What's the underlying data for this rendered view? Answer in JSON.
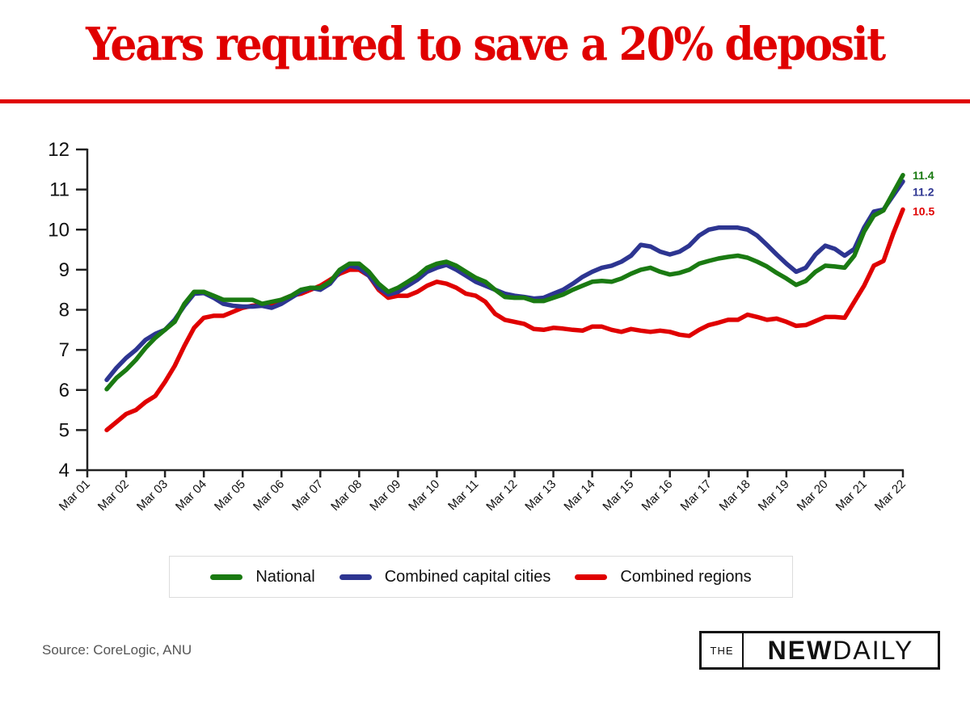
{
  "header": {
    "title": "Years required to save a 20% deposit"
  },
  "colors": {
    "title": "#e00000",
    "national": "#1a7a12",
    "capitals": "#2d3591",
    "regions": "#e00000",
    "axis": "#222222"
  },
  "chart_data": {
    "type": "line",
    "title": "Years required to save a 20% deposit",
    "xlabel": "",
    "ylabel": "",
    "ylim": [
      4,
      12
    ],
    "yticks": [
      4,
      5,
      6,
      7,
      8,
      9,
      10,
      11,
      12
    ],
    "xticks": [
      "Mar 01",
      "Mar 02",
      "Mar 03",
      "Mar 04",
      "Mar 05",
      "Mar 06",
      "Mar 07",
      "Mar 08",
      "Mar 09",
      "Mar 10",
      "Mar 11",
      "Mar 12",
      "Mar 13",
      "Mar 14",
      "Mar 15",
      "Mar 16",
      "Mar 17",
      "Mar 18",
      "Mar 19",
      "Mar 20",
      "Mar 21",
      "Mar 22"
    ],
    "x_start": "Sep 01",
    "x_step": "quarterly",
    "grid": false,
    "legend_position": "bottom",
    "series": [
      {
        "name": "National",
        "color_key": "national",
        "end_label": "11.4",
        "values": [
          6.02,
          6.3,
          6.5,
          6.75,
          7.05,
          7.3,
          7.5,
          7.7,
          8.15,
          8.45,
          8.45,
          8.35,
          8.25,
          8.25,
          8.25,
          8.25,
          8.15,
          8.2,
          8.25,
          8.35,
          8.5,
          8.55,
          8.55,
          8.7,
          9.0,
          9.15,
          9.15,
          8.95,
          8.65,
          8.45,
          8.55,
          8.7,
          8.85,
          9.05,
          9.15,
          9.2,
          9.1,
          8.95,
          8.8,
          8.7,
          8.5,
          8.32,
          8.3,
          8.3,
          8.22,
          8.22,
          8.3,
          8.38,
          8.5,
          8.6,
          8.7,
          8.72,
          8.7,
          8.78,
          8.9,
          9.0,
          9.05,
          8.95,
          8.88,
          8.92,
          9.0,
          9.15,
          9.22,
          9.28,
          9.32,
          9.35,
          9.3,
          9.2,
          9.08,
          8.92,
          8.78,
          8.62,
          8.72,
          8.95,
          9.1,
          9.08,
          9.05,
          9.35,
          9.95,
          10.35,
          10.48,
          10.92,
          11.36
        ]
      },
      {
        "name": "Combined capital cities",
        "color_key": "capitals",
        "end_label": "11.2",
        "values": [
          6.25,
          6.55,
          6.8,
          7.0,
          7.25,
          7.4,
          7.5,
          7.75,
          8.1,
          8.4,
          8.42,
          8.3,
          8.15,
          8.1,
          8.08,
          8.08,
          8.1,
          8.05,
          8.15,
          8.3,
          8.45,
          8.55,
          8.5,
          8.65,
          8.95,
          9.1,
          9.05,
          8.85,
          8.55,
          8.38,
          8.45,
          8.6,
          8.75,
          8.95,
          9.05,
          9.12,
          9.0,
          8.85,
          8.7,
          8.6,
          8.5,
          8.4,
          8.35,
          8.32,
          8.28,
          8.3,
          8.4,
          8.5,
          8.65,
          8.82,
          8.95,
          9.05,
          9.1,
          9.2,
          9.35,
          9.62,
          9.58,
          9.45,
          9.38,
          9.45,
          9.6,
          9.85,
          10.0,
          10.05,
          10.05,
          10.05,
          10.0,
          9.85,
          9.62,
          9.38,
          9.15,
          8.95,
          9.05,
          9.38,
          9.6,
          9.52,
          9.35,
          9.52,
          10.05,
          10.45,
          10.5,
          10.85,
          11.2
        ]
      },
      {
        "name": "Combined regions",
        "color_key": "regions",
        "end_label": "10.5",
        "values": [
          5.0,
          5.2,
          5.4,
          5.5,
          5.7,
          5.85,
          6.2,
          6.6,
          7.1,
          7.55,
          7.8,
          7.85,
          7.85,
          7.95,
          8.05,
          8.1,
          8.12,
          8.15,
          8.25,
          8.35,
          8.4,
          8.5,
          8.6,
          8.75,
          8.9,
          9.0,
          9.0,
          8.85,
          8.5,
          8.3,
          8.35,
          8.35,
          8.45,
          8.6,
          8.7,
          8.65,
          8.55,
          8.4,
          8.35,
          8.2,
          7.9,
          7.75,
          7.7,
          7.65,
          7.52,
          7.5,
          7.55,
          7.53,
          7.5,
          7.48,
          7.58,
          7.58,
          7.5,
          7.45,
          7.52,
          7.48,
          7.45,
          7.48,
          7.45,
          7.38,
          7.35,
          7.5,
          7.62,
          7.68,
          7.75,
          7.75,
          7.88,
          7.82,
          7.75,
          7.78,
          7.7,
          7.6,
          7.62,
          7.72,
          7.82,
          7.82,
          7.8,
          8.2,
          8.6,
          9.1,
          9.22,
          9.9,
          10.5
        ]
      }
    ]
  },
  "legend": {
    "items": [
      {
        "label": "National",
        "color_key": "national"
      },
      {
        "label": "Combined capital cities",
        "color_key": "capitals"
      },
      {
        "label": "Combined regions",
        "color_key": "regions"
      }
    ]
  },
  "footer": {
    "source": "Source: CoreLogic, ANU",
    "logo_the": "THE",
    "logo_new": "NEW",
    "logo_daily": "DAILY"
  }
}
